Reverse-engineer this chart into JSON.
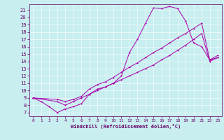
{
  "bg_color": "#c8eef0",
  "line_color": "#aa00aa",
  "grid_color": "#ffffff",
  "xlim": [
    -0.5,
    23.5
  ],
  "ylim": [
    6.5,
    21.8
  ],
  "xticks": [
    0,
    1,
    2,
    3,
    4,
    5,
    6,
    7,
    8,
    9,
    10,
    11,
    12,
    13,
    14,
    15,
    16,
    17,
    18,
    19,
    20,
    21,
    22,
    23
  ],
  "yticks": [
    7,
    8,
    9,
    10,
    11,
    12,
    13,
    14,
    15,
    16,
    17,
    18,
    19,
    20,
    21
  ],
  "xlabel": "Windchill (Refroidissement éolien,°C)",
  "line1_x": [
    0,
    1,
    2,
    3,
    4,
    5,
    6,
    7,
    8,
    9,
    10,
    11,
    12,
    13,
    14,
    15,
    16,
    17,
    18,
    19,
    20,
    21,
    22,
    23
  ],
  "line1_y": [
    9.0,
    8.5,
    7.8,
    7.0,
    7.5,
    7.8,
    8.2,
    9.5,
    10.2,
    10.5,
    11.0,
    12.0,
    15.2,
    17.0,
    19.2,
    21.3,
    21.2,
    21.5,
    21.2,
    19.5,
    16.5,
    16.0,
    14.2,
    14.5
  ],
  "line2_x": [
    0,
    3,
    4,
    5,
    6,
    7,
    8,
    9,
    10,
    11,
    12,
    13,
    14,
    15,
    16,
    17,
    18,
    19,
    20,
    21,
    22,
    23
  ],
  "line2_y": [
    9.0,
    8.8,
    8.5,
    8.8,
    9.2,
    10.2,
    10.8,
    11.2,
    11.8,
    12.5,
    13.2,
    13.8,
    14.5,
    15.2,
    15.8,
    16.5,
    17.2,
    17.8,
    18.5,
    19.2,
    14.2,
    14.8
  ],
  "line3_x": [
    0,
    3,
    4,
    5,
    6,
    7,
    8,
    9,
    10,
    11,
    12,
    13,
    14,
    15,
    16,
    17,
    18,
    19,
    20,
    21,
    22,
    23
  ],
  "line3_y": [
    9.0,
    8.5,
    8.0,
    8.5,
    9.0,
    9.5,
    10.0,
    10.5,
    11.0,
    11.5,
    12.0,
    12.5,
    13.0,
    13.5,
    14.2,
    14.8,
    15.5,
    16.2,
    17.0,
    17.8,
    14.0,
    14.5
  ],
  "tick_color": "#660066",
  "tick_fontsize": 5,
  "xlabel_fontsize": 5,
  "lw": 0.7,
  "ms": 2.0
}
